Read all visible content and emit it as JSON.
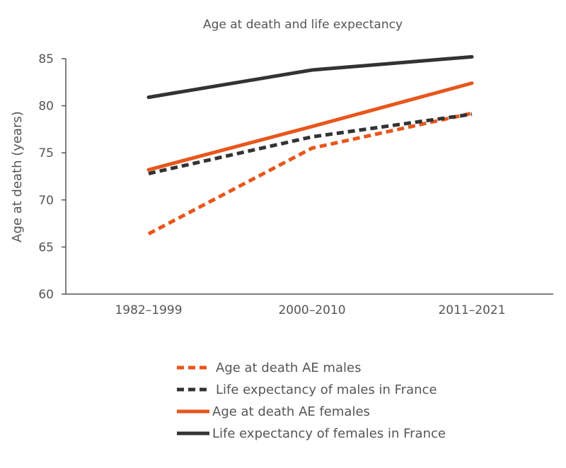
{
  "chart_data": {
    "type": "line",
    "title": "Age at death and life expectancy",
    "xlabel": "",
    "ylabel": "Age at death (years)",
    "categories": [
      "1982–1999",
      "2000–2010",
      "2011–2021"
    ],
    "ylim": [
      60,
      85
    ],
    "yticks": [
      "60",
      "65",
      "70",
      "75",
      "80",
      "85"
    ],
    "grid": false,
    "legend_position": "bottom",
    "series": [
      {
        "name": "Age at death AE males",
        "values": [
          66.4,
          75.5,
          79.2
        ],
        "color": "#e8561c",
        "dashed": true
      },
      {
        "name": "Life expectancy of males in France",
        "values": [
          72.8,
          76.7,
          79.1
        ],
        "color": "#333333",
        "dashed": true
      },
      {
        "name": "Age at death  AE females",
        "values": [
          73.2,
          77.8,
          82.4
        ],
        "color": "#e8561c",
        "dashed": false
      },
      {
        "name": "Life expectancy of females in France",
        "values": [
          80.9,
          83.8,
          85.2
        ],
        "color": "#333333",
        "dashed": false
      }
    ]
  }
}
